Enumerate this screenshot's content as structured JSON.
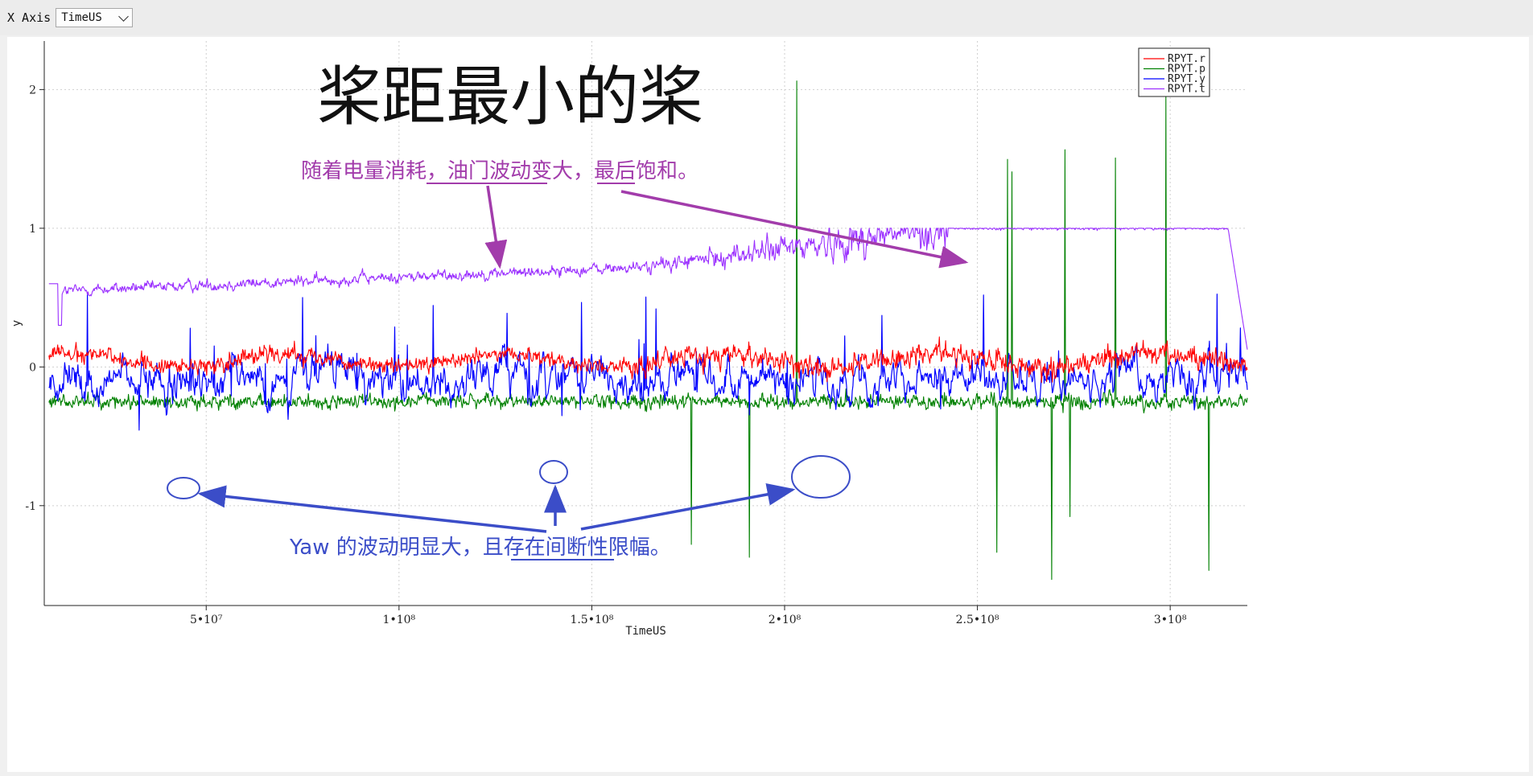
{
  "toolbar": {
    "x_axis_label": "X Axis",
    "x_axis_selected": "TimeUS"
  },
  "chart_data": {
    "type": "line",
    "xlabel": "TimeUS",
    "ylabel": "y",
    "xlim": [
      8000000,
      320000000
    ],
    "ylim": [
      -1.72,
      2.35
    ],
    "x_ticks": [
      50000000,
      100000000,
      150000000,
      200000000,
      250000000,
      300000000
    ],
    "x_tick_labels": [
      "5•10⁷",
      "1•10⁸",
      "1.5•10⁸",
      "2•10⁸",
      "2.5•10⁸",
      "3•10⁸"
    ],
    "y_ticks": [
      -1,
      0,
      1,
      2
    ],
    "y_tick_labels": [
      "-1",
      "0",
      "1",
      "2"
    ],
    "grid": true,
    "legend_position": "top-right",
    "series": [
      {
        "name": "RPYT.r",
        "color": "#ff0000"
      },
      {
        "name": "RPYT.p",
        "color": "#008000"
      },
      {
        "name": "RPYT.y",
        "color": "#0000ff"
      },
      {
        "name": "RPYT.t",
        "color": "#9b30ff"
      }
    ],
    "annotations": {
      "title": "桨距最小的桨",
      "throttle_note_parts": [
        "随着电量消耗，",
        "油门波动变大",
        "，最后",
        "饱和",
        "。"
      ],
      "yaw_note_parts": [
        "Yaw 的波动明显大，且存在",
        "间断性限幅",
        "。"
      ]
    }
  }
}
